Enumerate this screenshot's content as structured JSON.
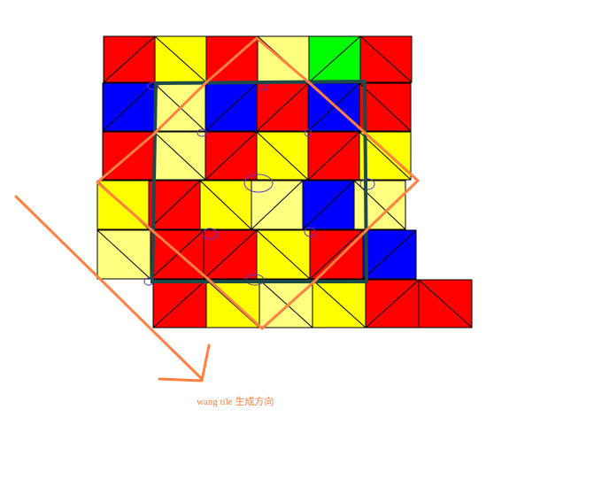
{
  "colors": {
    "R": "#ff0000",
    "Y": "#ffff00",
    "L": "#ffff80",
    "B": "#0000ff",
    "G": "#00ff00",
    "frame": "#1f4a4a",
    "path": "#ff8040",
    "seam_marker": "#6633cc",
    "tile_line": "#000000"
  },
  "grid": {
    "rows": [
      [
        "R",
        "Y",
        "R",
        "L",
        "G",
        "R"
      ],
      [
        "B",
        "L",
        "B",
        "R",
        "B",
        "R"
      ],
      [
        "R",
        "L",
        "R",
        "Y",
        "R",
        "Y"
      ],
      [
        "Y",
        "R",
        "Y",
        "L",
        "B",
        "L"
      ],
      [
        "L",
        "R",
        "R",
        "Y",
        "R",
        "B"
      ],
      [
        "R",
        "Y",
        "L",
        "Y",
        "R",
        "R"
      ]
    ]
  },
  "diagram": {
    "caption": "wang tile 生成方向"
  }
}
